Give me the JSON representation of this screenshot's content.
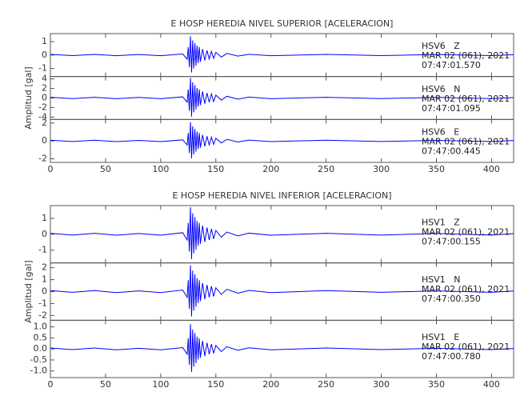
{
  "chart_data": [
    {
      "type": "line",
      "title": "E HOSP HEREDIA NIVEL SUPERIOR [ACELERACION]",
      "y_label": "Amplitud [gal]",
      "x": [
        0,
        20,
        40,
        60,
        80,
        100,
        120,
        124,
        125,
        126,
        127,
        128,
        129,
        130,
        131,
        132,
        133,
        134,
        135,
        136,
        138,
        140,
        142,
        144,
        146,
        148,
        150,
        155,
        160,
        170,
        180,
        200,
        250,
        300,
        350,
        400,
        420
      ],
      "xlim": [
        0,
        420
      ],
      "xticks": [
        0,
        50,
        100,
        150,
        200,
        250,
        300,
        350,
        400
      ],
      "series": [
        {
          "name": "HSV6   Z",
          "date": "MAR 02 (061), 2021",
          "time": "07:47:01.570",
          "color": "#0000ff",
          "ylim": [
            -1.6,
            1.6
          ],
          "yticks": [
            -1,
            0,
            1
          ],
          "values": [
            0.05,
            -0.04,
            0.05,
            -0.05,
            0.04,
            -0.05,
            0.08,
            -0.3,
            0.6,
            -0.9,
            1.4,
            -1.3,
            1.1,
            -1.0,
            0.9,
            -0.8,
            0.7,
            -0.6,
            0.6,
            -0.5,
            0.45,
            -0.4,
            0.35,
            -0.3,
            0.28,
            -0.25,
            0.2,
            -0.15,
            0.12,
            -0.08,
            0.06,
            -0.05,
            0.05,
            -0.04,
            0.04,
            -0.04,
            0.03
          ]
        },
        {
          "name": "HSV6   N",
          "date": "MAR 02 (061), 2021",
          "time": "07:47:01.095",
          "color": "#0000ff",
          "ylim": [
            -4.5,
            4.5
          ],
          "yticks": [
            -4,
            -2,
            0,
            2,
            4
          ],
          "values": [
            0.15,
            -0.12,
            0.15,
            -0.15,
            0.12,
            -0.15,
            0.24,
            -0.9,
            1.8,
            -2.7,
            4.2,
            -3.9,
            3.3,
            -3.0,
            2.7,
            -2.4,
            2.1,
            -1.8,
            1.8,
            -1.5,
            1.35,
            -1.2,
            1.05,
            -0.9,
            0.84,
            -0.75,
            0.6,
            -0.45,
            0.36,
            -0.24,
            0.18,
            -0.15,
            0.15,
            -0.12,
            0.12,
            -0.12,
            0.09
          ]
        },
        {
          "name": "HSV6   E",
          "date": "MAR 02 (061), 2021",
          "time": "07:47:00.445",
          "color": "#0000ff",
          "ylim": [
            -2.4,
            2.4
          ],
          "yticks": [
            -2,
            0,
            2
          ],
          "values": [
            0.08,
            -0.06,
            0.08,
            -0.08,
            0.06,
            -0.08,
            0.12,
            -0.45,
            0.9,
            -1.35,
            2.1,
            -1.95,
            1.65,
            -1.5,
            1.35,
            -1.2,
            1.05,
            -0.9,
            0.9,
            -0.75,
            0.68,
            -0.6,
            0.53,
            -0.45,
            0.42,
            -0.38,
            0.3,
            -0.23,
            0.18,
            -0.12,
            0.09,
            -0.08,
            0.08,
            -0.06,
            0.06,
            -0.06,
            0.05
          ]
        }
      ]
    },
    {
      "type": "line",
      "title": "E HOSP HEREDIA NIVEL INFERIOR [ACELERACION]",
      "y_label": "Amplitud [gal]",
      "x": [
        0,
        20,
        40,
        60,
        80,
        100,
        120,
        124,
        125,
        126,
        127,
        128,
        129,
        130,
        131,
        132,
        133,
        134,
        135,
        136,
        138,
        140,
        142,
        144,
        146,
        148,
        150,
        155,
        160,
        170,
        180,
        200,
        250,
        300,
        350,
        400,
        420
      ],
      "xlim": [
        0,
        420
      ],
      "xticks": [
        0,
        50,
        100,
        150,
        200,
        250,
        300,
        350,
        400
      ],
      "series": [
        {
          "name": "HSV1   Z",
          "date": "MAR 02 (061), 2021",
          "time": "07:47:00.155",
          "color": "#0000ff",
          "ylim": [
            -1.8,
            1.8
          ],
          "yticks": [
            -1,
            0,
            1
          ],
          "values": [
            0.06,
            -0.05,
            0.06,
            -0.06,
            0.05,
            -0.06,
            0.1,
            -0.36,
            0.72,
            -1.08,
            1.7,
            -1.56,
            1.32,
            -1.2,
            1.08,
            -0.96,
            0.84,
            -0.72,
            0.72,
            -0.6,
            0.54,
            -0.48,
            0.42,
            -0.36,
            0.34,
            -0.3,
            0.24,
            -0.18,
            0.14,
            -0.1,
            0.07,
            -0.06,
            0.06,
            -0.05,
            0.05,
            -0.05,
            0.04
          ]
        },
        {
          "name": "HSV1   N",
          "date": "MAR 02 (061), 2021",
          "time": "07:47:00.350",
          "color": "#0000ff",
          "ylim": [
            -2.4,
            2.4
          ],
          "yticks": [
            -2,
            -1,
            0,
            1,
            2
          ],
          "values": [
            0.08,
            -0.06,
            0.08,
            -0.08,
            0.06,
            -0.08,
            0.13,
            -0.48,
            0.96,
            -1.44,
            2.2,
            -2.08,
            1.76,
            -1.6,
            1.44,
            -1.28,
            1.12,
            -0.96,
            0.96,
            -0.8,
            0.72,
            -0.64,
            0.56,
            -0.48,
            0.45,
            -0.4,
            0.32,
            -0.24,
            0.19,
            -0.13,
            0.1,
            -0.08,
            0.08,
            -0.06,
            0.06,
            -0.06,
            0.05
          ]
        },
        {
          "name": "HSV1   E",
          "date": "MAR 02 (061), 2021",
          "time": "07:47:00.780",
          "color": "#0000ff",
          "ylim": [
            -1.3,
            1.3
          ],
          "yticks": [
            {
              "value": -1,
              "label": "-1.0"
            },
            {
              "value": -0.5,
              "label": "-0.5"
            },
            {
              "value": 0,
              "label": "0.0"
            },
            {
              "value": 0.5,
              "label": "0.5"
            },
            {
              "value": 1,
              "label": "1.0"
            }
          ],
          "values": [
            0.04,
            -0.03,
            0.04,
            -0.04,
            0.03,
            -0.04,
            0.06,
            -0.24,
            0.48,
            -0.72,
            1.12,
            -1.04,
            0.88,
            -0.8,
            0.72,
            -0.64,
            0.56,
            -0.48,
            0.48,
            -0.4,
            0.36,
            -0.32,
            0.28,
            -0.24,
            0.22,
            -0.2,
            0.16,
            -0.12,
            0.1,
            -0.06,
            0.05,
            -0.04,
            0.04,
            -0.03,
            0.03,
            -0.03,
            0.02
          ]
        }
      ]
    }
  ]
}
